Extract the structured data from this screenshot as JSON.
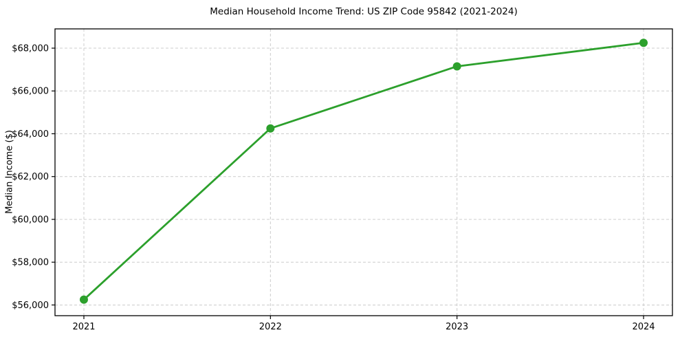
{
  "chart_data": {
    "type": "line",
    "title": "Median Household Income Trend: US ZIP Code 95842 (2021-2024)",
    "xlabel": "",
    "ylabel": "Median Income ($)",
    "categories": [
      "2021",
      "2022",
      "2023",
      "2024"
    ],
    "series": [
      {
        "name": "Median Household Income",
        "values": [
          56250,
          64250,
          67150,
          68250
        ],
        "color": "#2ca02c",
        "marker": "circle"
      }
    ],
    "yticks": [
      {
        "value": 56000,
        "label": "$56,000"
      },
      {
        "value": 58000,
        "label": "$58,000"
      },
      {
        "value": 60000,
        "label": "$60,000"
      },
      {
        "value": 62000,
        "label": "$62,000"
      },
      {
        "value": 64000,
        "label": "$64,000"
      },
      {
        "value": 66000,
        "label": "$66,000"
      },
      {
        "value": 68000,
        "label": "$68,000"
      }
    ],
    "ylim": [
      55500,
      68900
    ],
    "grid": true,
    "grid_style": "dashed",
    "grid_color": "#cccccc",
    "legend": "none",
    "axis_color": "#000000",
    "background_color": "#ffffff"
  }
}
